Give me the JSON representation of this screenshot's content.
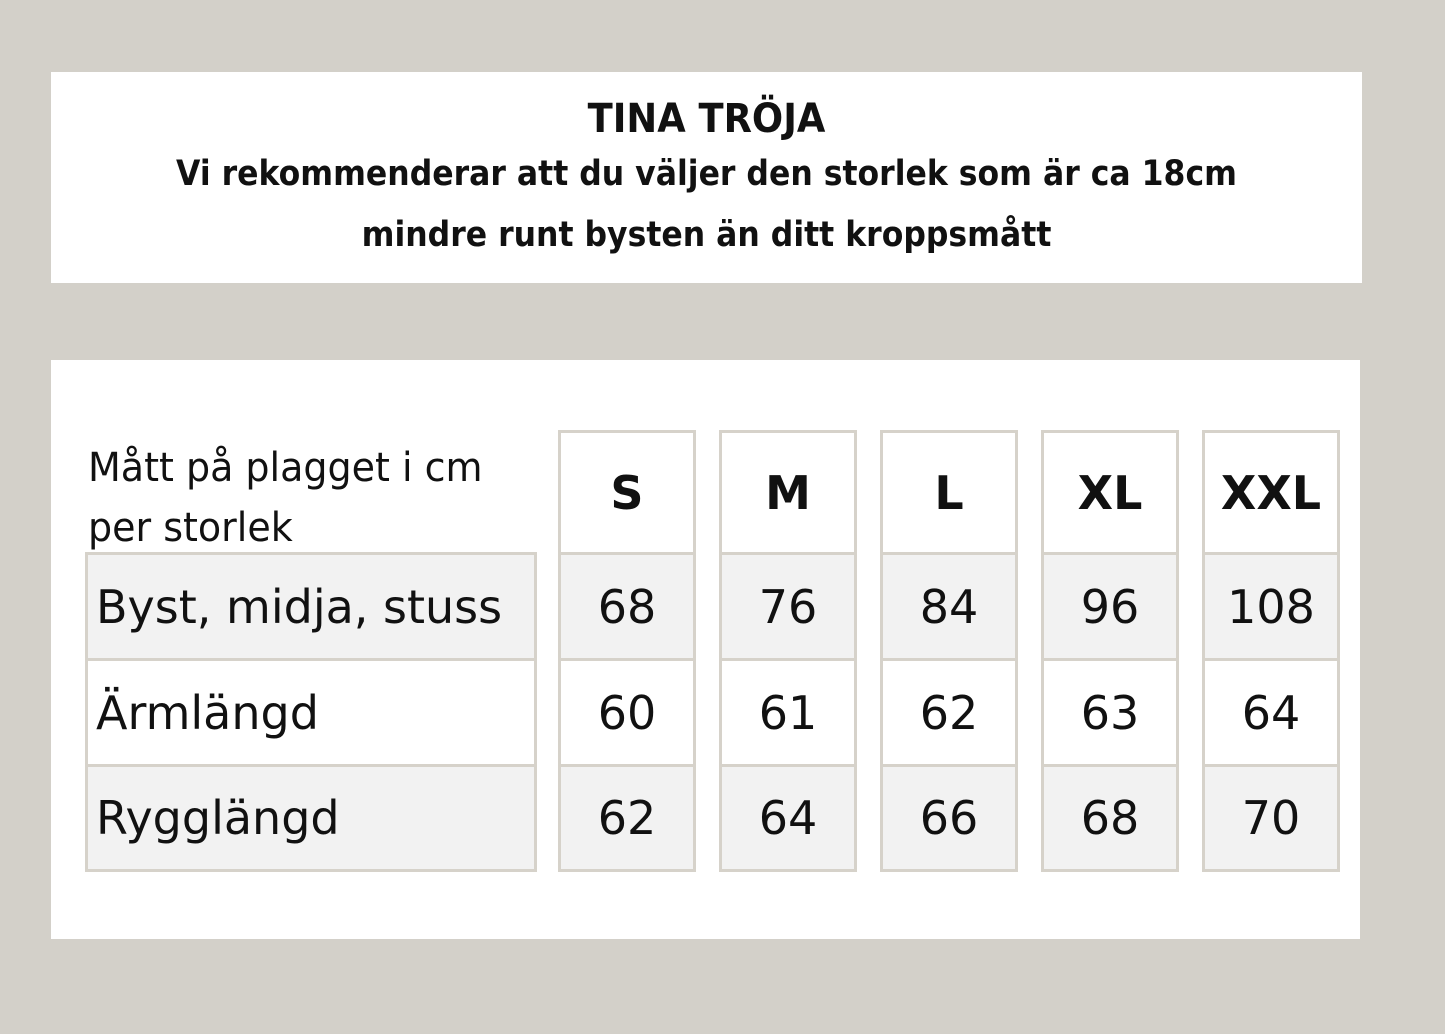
{
  "header": {
    "title": "TINA TRÖJA",
    "subtitle_line1": "Vi rekommenderar att du väljer den storlek som är ca 18cm",
    "subtitle_line2": "mindre runt bysten än ditt kroppsmått"
  },
  "table": {
    "corner_line1": "Mått på plagget i cm",
    "corner_line2": "per storlek",
    "sizes": [
      "S",
      "M",
      "L",
      "XL",
      "XXL"
    ],
    "rows": [
      {
        "label": "Byst, midja, stuss",
        "values": [
          "68",
          "76",
          "84",
          "96",
          "108"
        ]
      },
      {
        "label": "Ärmlängd",
        "values": [
          "60",
          "61",
          "62",
          "63",
          "64"
        ]
      },
      {
        "label": "Rygglängd",
        "values": [
          "62",
          "64",
          "66",
          "68",
          "70"
        ]
      }
    ]
  },
  "colors": {
    "background": "#d3d0c9",
    "row_shade": "#f2f2f2",
    "border": "#d6d2ca"
  }
}
